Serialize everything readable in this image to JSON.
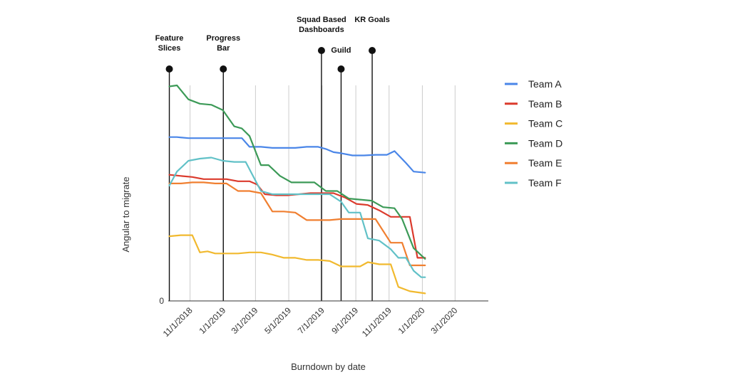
{
  "chart_data": {
    "type": "line",
    "title": "",
    "xlabel": "Burndown by date",
    "ylabel": "Angular to migrate",
    "x_ticks": [
      "11/1/2018",
      "1/1/2019",
      "3/1/2019",
      "5/1/2019",
      "7/1/2019",
      "9/1/2019",
      "11/1/2019",
      "1/1/2020",
      "3/1/2020"
    ],
    "y_ticks": [
      "0"
    ],
    "xlim": [
      "2018-09-22",
      "2020-05-01"
    ],
    "ylim": [
      0,
      100
    ],
    "grid": "vertical",
    "legend_position": "right",
    "events": [
      {
        "label": [
          "Feature",
          "Slices"
        ],
        "date": "2018-09-24"
      },
      {
        "label": [
          "Progress",
          "Bar"
        ],
        "date": "2019-01-01"
      },
      {
        "label": [
          "Squad Based",
          "Dashboards"
        ],
        "date": "2019-06-30"
      },
      {
        "label": [
          "Guild"
        ],
        "date": "2019-08-05"
      },
      {
        "label": [
          "KR Goals"
        ],
        "date": "2019-10-01"
      }
    ],
    "series": [
      {
        "name": "Team A",
        "color": "#4a86e8",
        "points": [
          [
            "2018-09-24",
            76
          ],
          [
            "2018-10-08",
            76
          ],
          [
            "2018-10-29",
            75.5
          ],
          [
            "2018-11-19",
            75.5
          ],
          [
            "2018-12-10",
            75.5
          ],
          [
            "2018-12-31",
            75.5
          ],
          [
            "2019-01-21",
            75.5
          ],
          [
            "2019-02-04",
            75.5
          ],
          [
            "2019-02-18",
            71.5
          ],
          [
            "2019-03-11",
            71.5
          ],
          [
            "2019-04-01",
            71
          ],
          [
            "2019-04-22",
            71
          ],
          [
            "2019-05-13",
            71
          ],
          [
            "2019-06-03",
            71.5
          ],
          [
            "2019-06-24",
            71.5
          ],
          [
            "2019-07-08",
            70.5
          ],
          [
            "2019-07-22",
            69
          ],
          [
            "2019-08-05",
            68.5
          ],
          [
            "2019-08-26",
            67.5
          ],
          [
            "2019-09-16",
            67.5
          ],
          [
            "2019-10-07",
            67.8
          ],
          [
            "2019-10-28",
            67.8
          ],
          [
            "2019-11-11",
            69.5
          ],
          [
            "2019-12-02",
            64
          ],
          [
            "2019-12-16",
            60
          ],
          [
            "2020-01-06",
            59.5
          ]
        ]
      },
      {
        "name": "Team B",
        "color": "#db3a2c",
        "points": [
          [
            "2018-09-24",
            58.5
          ],
          [
            "2018-10-15",
            58
          ],
          [
            "2018-11-05",
            57.5
          ],
          [
            "2018-11-26",
            56.5
          ],
          [
            "2018-12-17",
            56.5
          ],
          [
            "2019-01-07",
            56.5
          ],
          [
            "2019-01-28",
            55.5
          ],
          [
            "2019-02-18",
            55.5
          ],
          [
            "2019-03-04",
            54
          ],
          [
            "2019-03-18",
            49.5
          ],
          [
            "2019-04-08",
            49
          ],
          [
            "2019-04-29",
            49
          ],
          [
            "2019-05-20",
            49.5
          ],
          [
            "2019-06-10",
            50
          ],
          [
            "2019-07-01",
            50
          ],
          [
            "2019-07-22",
            50
          ],
          [
            "2019-08-12",
            48
          ],
          [
            "2019-09-02",
            45
          ],
          [
            "2019-09-23",
            44.5
          ],
          [
            "2019-10-14",
            42
          ],
          [
            "2019-11-04",
            39
          ],
          [
            "2019-11-25",
            39
          ],
          [
            "2019-12-09",
            39
          ],
          [
            "2019-12-23",
            20
          ],
          [
            "2020-01-06",
            20
          ]
        ]
      },
      {
        "name": "Team C",
        "color": "#f1b92e",
        "points": [
          [
            "2018-09-24",
            30
          ],
          [
            "2018-10-15",
            30.5
          ],
          [
            "2018-11-05",
            30.5
          ],
          [
            "2018-11-19",
            22.5
          ],
          [
            "2018-12-03",
            23
          ],
          [
            "2018-12-17",
            22
          ],
          [
            "2019-01-07",
            22
          ],
          [
            "2019-01-28",
            22
          ],
          [
            "2019-02-18",
            22.5
          ],
          [
            "2019-03-11",
            22.5
          ],
          [
            "2019-04-01",
            21.5
          ],
          [
            "2019-04-22",
            20
          ],
          [
            "2019-05-13",
            20
          ],
          [
            "2019-06-03",
            19
          ],
          [
            "2019-06-24",
            19
          ],
          [
            "2019-07-15",
            18.5
          ],
          [
            "2019-08-05",
            16
          ],
          [
            "2019-08-26",
            16
          ],
          [
            "2019-09-09",
            16
          ],
          [
            "2019-09-23",
            18
          ],
          [
            "2019-10-14",
            17
          ],
          [
            "2019-11-04",
            17
          ],
          [
            "2019-11-18",
            6.5
          ],
          [
            "2019-12-09",
            4.5
          ],
          [
            "2020-01-06",
            3.5
          ]
        ]
      },
      {
        "name": "Team D",
        "color": "#3c9a57",
        "points": [
          [
            "2018-09-24",
            99.5
          ],
          [
            "2018-10-08",
            100
          ],
          [
            "2018-10-29",
            93.5
          ],
          [
            "2018-11-19",
            91.5
          ],
          [
            "2018-12-10",
            91
          ],
          [
            "2018-12-31",
            88.5
          ],
          [
            "2019-01-21",
            81
          ],
          [
            "2019-02-04",
            80
          ],
          [
            "2019-02-18",
            76.5
          ],
          [
            "2019-03-11",
            63
          ],
          [
            "2019-03-25",
            63
          ],
          [
            "2019-04-15",
            58
          ],
          [
            "2019-05-06",
            55
          ],
          [
            "2019-05-27",
            55
          ],
          [
            "2019-06-17",
            55
          ],
          [
            "2019-07-08",
            51
          ],
          [
            "2019-07-29",
            51
          ],
          [
            "2019-08-19",
            47.5
          ],
          [
            "2019-09-09",
            47
          ],
          [
            "2019-09-30",
            46.5
          ],
          [
            "2019-10-21",
            43.5
          ],
          [
            "2019-11-11",
            43
          ],
          [
            "2019-11-25",
            38
          ],
          [
            "2019-12-16",
            24.5
          ],
          [
            "2020-01-06",
            19.5
          ]
        ]
      },
      {
        "name": "Team E",
        "color": "#f07f30",
        "points": [
          [
            "2018-09-24",
            54.5
          ],
          [
            "2018-10-15",
            54.5
          ],
          [
            "2018-11-05",
            55
          ],
          [
            "2018-11-26",
            55
          ],
          [
            "2018-12-17",
            54.5
          ],
          [
            "2019-01-07",
            54.5
          ],
          [
            "2019-01-28",
            51
          ],
          [
            "2019-02-18",
            51
          ],
          [
            "2019-03-11",
            50
          ],
          [
            "2019-04-01",
            41.5
          ],
          [
            "2019-04-22",
            41.5
          ],
          [
            "2019-05-13",
            41
          ],
          [
            "2019-06-03",
            37.5
          ],
          [
            "2019-06-24",
            37.5
          ],
          [
            "2019-07-15",
            37.5
          ],
          [
            "2019-08-05",
            38
          ],
          [
            "2019-08-26",
            38
          ],
          [
            "2019-09-16",
            38
          ],
          [
            "2019-10-07",
            38
          ],
          [
            "2019-11-04",
            27
          ],
          [
            "2019-11-25",
            27
          ],
          [
            "2019-12-09",
            16.5
          ],
          [
            "2019-12-23",
            16.5
          ],
          [
            "2020-01-06",
            16.5
          ]
        ]
      },
      {
        "name": "Team F",
        "color": "#61c1c7",
        "points": [
          [
            "2018-09-24",
            53.5
          ],
          [
            "2018-10-08",
            60
          ],
          [
            "2018-10-29",
            65
          ],
          [
            "2018-11-19",
            66
          ],
          [
            "2018-12-10",
            66.5
          ],
          [
            "2018-12-31",
            65
          ],
          [
            "2019-01-21",
            64.5
          ],
          [
            "2019-02-11",
            64.5
          ],
          [
            "2019-03-11",
            51
          ],
          [
            "2019-04-01",
            49.5
          ],
          [
            "2019-04-22",
            49.5
          ],
          [
            "2019-05-13",
            49.5
          ],
          [
            "2019-06-03",
            49.5
          ],
          [
            "2019-06-24",
            49.5
          ],
          [
            "2019-07-15",
            49.5
          ],
          [
            "2019-08-05",
            46
          ],
          [
            "2019-08-19",
            41
          ],
          [
            "2019-09-09",
            41
          ],
          [
            "2019-09-23",
            29
          ],
          [
            "2019-10-14",
            28
          ],
          [
            "2019-11-04",
            24
          ],
          [
            "2019-11-18",
            20
          ],
          [
            "2019-12-02",
            20
          ],
          [
            "2019-12-16",
            14
          ],
          [
            "2019-12-30",
            11
          ],
          [
            "2020-01-06",
            11
          ]
        ]
      }
    ]
  }
}
